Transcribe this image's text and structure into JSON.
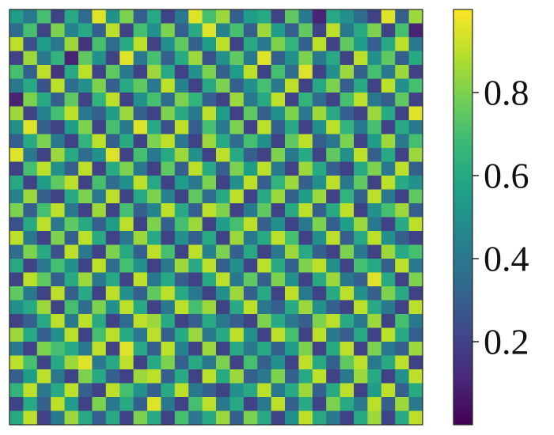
{
  "chart_data": {
    "type": "heatmap",
    "title": "",
    "xlabel": "",
    "ylabel": "",
    "rows": 30,
    "cols": 30,
    "value_range": [
      0,
      1
    ],
    "colormap": "viridis",
    "colormap_stops": [
      "#440154",
      "#482878",
      "#3e4989",
      "#31688e",
      "#26828e",
      "#1f9e89",
      "#35b779",
      "#6ece58",
      "#b5de2b",
      "#fde725"
    ],
    "colorbar": {
      "position": "right",
      "ticks": [
        {
          "value": 0.2,
          "label": "0.2"
        },
        {
          "value": 0.4,
          "label": "0.4"
        },
        {
          "value": 0.6,
          "label": "0.6"
        },
        {
          "value": 0.8,
          "label": "0.8"
        }
      ]
    },
    "grid": false,
    "values": [
      [
        0.55,
        0.4,
        0.7,
        0.2,
        0.6,
        0.35,
        0.95,
        0.5,
        0.8,
        0.3,
        0.6,
        0.2,
        0.4,
        0.95,
        0.7,
        0.85,
        0.3,
        0.55,
        0.6,
        0.2,
        0.75,
        0.4,
        0.1,
        0.6,
        0.5,
        0.35,
        0.2,
        0.95,
        0.3,
        0.85
      ],
      [
        0.35,
        0.7,
        0.2,
        0.8,
        0.45,
        0.6,
        0.3,
        0.9,
        0.2,
        0.7,
        0.5,
        0.8,
        0.3,
        0.6,
        0.95,
        0.45,
        0.7,
        0.3,
        0.85,
        0.55,
        0.3,
        0.75,
        0.2,
        0.9,
        0.4,
        0.6,
        0.8,
        0.2,
        0.7,
        0.1
      ],
      [
        0.9,
        0.25,
        0.55,
        0.4,
        0.85,
        0.15,
        0.7,
        0.35,
        0.6,
        0.9,
        0.2,
        0.5,
        0.75,
        0.3,
        0.55,
        0.9,
        0.2,
        0.6,
        0.4,
        0.8,
        0.65,
        0.3,
        0.9,
        0.2,
        0.75,
        0.55,
        0.3,
        0.6,
        0.9,
        0.4
      ],
      [
        0.2,
        0.85,
        0.4,
        0.65,
        0.1,
        0.75,
        0.5,
        0.2,
        0.95,
        0.4,
        0.7,
        0.3,
        0.6,
        0.85,
        0.25,
        0.5,
        0.75,
        0.4,
        0.95,
        0.3,
        0.5,
        0.8,
        0.4,
        0.6,
        0.2,
        0.9,
        0.5,
        0.75,
        0.3,
        0.6
      ],
      [
        0.7,
        0.3,
        0.9,
        0.15,
        0.6,
        0.9,
        0.2,
        0.75,
        0.4,
        0.2,
        0.85,
        0.6,
        0.2,
        0.5,
        0.8,
        0.3,
        0.55,
        0.9,
        0.2,
        0.7,
        0.35,
        0.95,
        0.2,
        0.5,
        0.85,
        0.3,
        0.7,
        0.4,
        0.85,
        0.2
      ],
      [
        0.4,
        0.6,
        0.25,
        0.9,
        0.35,
        0.5,
        0.8,
        0.3,
        0.6,
        0.75,
        0.4,
        0.9,
        0.45,
        0.2,
        0.6,
        0.8,
        0.3,
        0.5,
        0.7,
        0.4,
        0.9,
        0.2,
        0.6,
        0.8,
        0.3,
        0.6,
        0.2,
        0.9,
        0.5,
        0.7
      ],
      [
        0.1,
        0.8,
        0.6,
        0.3,
        0.75,
        0.2,
        0.65,
        0.9,
        0.2,
        0.5,
        0.7,
        0.35,
        0.8,
        0.65,
        0.3,
        0.2,
        0.85,
        0.4,
        0.6,
        0.9,
        0.2,
        0.65,
        0.35,
        0.2,
        0.7,
        0.9,
        0.4,
        0.3,
        0.75,
        0.2
      ],
      [
        0.85,
        0.2,
        0.45,
        0.7,
        0.9,
        0.4,
        0.3,
        0.55,
        0.85,
        0.3,
        0.2,
        0.8,
        0.6,
        0.4,
        0.9,
        0.55,
        0.2,
        0.75,
        0.3,
        0.5,
        0.8,
        0.4,
        0.85,
        0.6,
        0.3,
        0.2,
        0.85,
        0.6,
        0.2,
        0.95
      ],
      [
        0.5,
        0.95,
        0.3,
        0.2,
        0.55,
        0.8,
        0.2,
        0.7,
        0.4,
        0.95,
        0.6,
        0.25,
        0.9,
        0.3,
        0.7,
        0.4,
        0.8,
        0.2,
        0.9,
        0.3,
        0.6,
        0.2,
        0.5,
        0.9,
        0.65,
        0.4,
        0.7,
        0.2,
        0.6,
        0.4
      ],
      [
        0.3,
        0.6,
        0.8,
        0.4,
        0.2,
        0.65,
        0.9,
        0.3,
        0.6,
        0.2,
        0.8,
        0.9,
        0.4,
        0.2,
        0.85,
        0.6,
        0.35,
        0.7,
        0.5,
        0.2,
        0.75,
        0.9,
        0.3,
        0.4,
        0.8,
        0.2,
        0.55,
        0.85,
        0.4,
        0.7
      ],
      [
        0.95,
        0.4,
        0.2,
        0.85,
        0.6,
        0.35,
        0.5,
        0.95,
        0.2,
        0.7,
        0.4,
        0.6,
        0.85,
        0.5,
        0.2,
        0.9,
        0.6,
        0.3,
        0.2,
        0.8,
        0.4,
        0.6,
        0.2,
        0.75,
        0.5,
        0.9,
        0.3,
        0.6,
        0.2,
        0.85
      ],
      [
        0.2,
        0.7,
        0.9,
        0.5,
        0.3,
        0.9,
        0.2,
        0.6,
        0.8,
        0.4,
        0.2,
        0.75,
        0.3,
        0.9,
        0.6,
        0.3,
        0.8,
        0.55,
        0.9,
        0.4,
        0.2,
        0.85,
        0.6,
        0.3,
        0.2,
        0.6,
        0.8,
        0.4,
        0.9,
        0.3
      ],
      [
        0.6,
        0.2,
        0.55,
        0.75,
        0.9,
        0.2,
        0.7,
        0.35,
        0.5,
        0.9,
        0.6,
        0.2,
        0.55,
        0.4,
        0.8,
        0.2,
        0.5,
        0.9,
        0.3,
        0.65,
        0.85,
        0.3,
        0.5,
        0.9,
        0.4,
        0.75,
        0.2,
        0.9,
        0.6,
        0.5
      ],
      [
        0.45,
        0.85,
        0.3,
        0.2,
        0.6,
        0.8,
        0.4,
        0.9,
        0.2,
        0.6,
        0.8,
        0.45,
        0.2,
        0.75,
        0.35,
        0.6,
        0.9,
        0.2,
        0.6,
        0.85,
        0.3,
        0.55,
        0.85,
        0.2,
        0.65,
        0.3,
        0.9,
        0.4,
        0.2,
        0.75
      ],
      [
        0.8,
        0.3,
        0.7,
        0.9,
        0.4,
        0.2,
        0.85,
        0.2,
        0.7,
        0.3,
        0.45,
        0.9,
        0.6,
        0.3,
        0.9,
        0.8,
        0.2,
        0.4,
        0.75,
        0.2,
        0.6,
        0.9,
        0.3,
        0.6,
        0.9,
        0.2,
        0.5,
        0.7,
        0.85,
        0.3
      ],
      [
        0.25,
        0.6,
        0.9,
        0.4,
        0.75,
        0.6,
        0.3,
        0.55,
        0.9,
        0.2,
        0.8,
        0.3,
        0.7,
        0.85,
        0.2,
        0.55,
        0.7,
        0.9,
        0.3,
        0.5,
        0.2,
        0.4,
        0.8,
        0.3,
        0.55,
        0.85,
        0.4,
        0.2,
        0.6,
        0.9
      ],
      [
        0.9,
        0.4,
        0.2,
        0.8,
        0.3,
        0.9,
        0.6,
        0.2,
        0.4,
        0.85,
        0.6,
        0.2,
        0.5,
        0.3,
        0.6,
        0.2,
        0.85,
        0.4,
        0.6,
        0.9,
        0.7,
        0.2,
        0.5,
        0.9,
        0.3,
        0.6,
        0.9,
        0.5,
        0.3,
        0.2
      ],
      [
        0.35,
        0.8,
        0.6,
        0.25,
        0.9,
        0.4,
        0.2,
        0.8,
        0.6,
        0.3,
        0.9,
        0.7,
        0.2,
        0.9,
        0.45,
        0.8,
        0.3,
        0.6,
        0.2,
        0.4,
        0.85,
        0.6,
        0.3,
        0.2,
        0.8,
        0.4,
        0.2,
        0.85,
        0.6,
        0.7
      ],
      [
        0.6,
        0.2,
        0.4,
        0.7,
        0.5,
        0.2,
        0.9,
        0.35,
        0.7,
        0.5,
        0.2,
        0.4,
        0.85,
        0.6,
        0.9,
        0.3,
        0.5,
        0.2,
        0.9,
        0.6,
        0.3,
        0.8,
        0.9,
        0.5,
        0.2,
        0.7,
        0.6,
        0.3,
        0.9,
        0.4
      ],
      [
        0.2,
        0.9,
        0.75,
        0.3,
        0.6,
        0.85,
        0.4,
        0.6,
        0.2,
        0.9,
        0.4,
        0.6,
        0.3,
        0.2,
        0.6,
        0.9,
        0.4,
        0.75,
        0.3,
        0.8,
        0.5,
        0.2,
        0.6,
        0.85,
        0.4,
        0.3,
        0.95,
        0.6,
        0.2,
        0.8
      ],
      [
        0.75,
        0.4,
        0.2,
        0.9,
        0.3,
        0.6,
        0.2,
        0.9,
        0.5,
        0.3,
        0.75,
        0.9,
        0.6,
        0.4,
        0.2,
        0.5,
        0.85,
        0.3,
        0.6,
        0.2,
        0.9,
        0.4,
        0.2,
        0.6,
        0.9,
        0.5,
        0.3,
        0.8,
        0.6,
        0.2
      ],
      [
        0.5,
        0.6,
        0.85,
        0.2,
        0.7,
        0.35,
        0.8,
        0.5,
        0.9,
        0.6,
        0.2,
        0.4,
        0.9,
        0.7,
        0.85,
        0.2,
        0.6,
        0.9,
        0.4,
        0.3,
        0.6,
        0.85,
        0.5,
        0.3,
        0.2,
        0.9,
        0.6,
        0.4,
        0.2,
        0.9
      ],
      [
        0.2,
        0.3,
        0.6,
        0.9,
        0.4,
        0.9,
        0.6,
        0.2,
        0.35,
        0.9,
        0.85,
        0.6,
        0.2,
        0.3,
        0.6,
        0.4,
        0.3,
        0.2,
        0.8,
        0.6,
        0.4,
        0.3,
        0.8,
        0.9,
        0.6,
        0.4,
        0.85,
        0.2,
        0.7,
        0.4
      ],
      [
        0.85,
        0.6,
        0.3,
        0.5,
        0.9,
        0.2,
        0.7,
        0.9,
        0.6,
        0.4,
        0.9,
        0.3,
        0.6,
        0.85,
        0.4,
        0.6,
        0.9,
        0.5,
        0.2,
        0.9,
        0.7,
        0.2,
        0.9,
        0.4,
        0.3,
        0.6,
        0.2,
        0.9,
        0.6,
        0.3
      ],
      [
        0.4,
        0.2,
        0.8,
        0.7,
        0.6,
        0.4,
        0.9,
        0.2,
        0.95,
        0.6,
        0.3,
        0.9,
        0.45,
        0.2,
        0.85,
        0.2,
        0.6,
        0.4,
        0.6,
        0.3,
        0.55,
        0.8,
        0.2,
        0.6,
        0.9,
        0.2,
        0.8,
        0.4,
        0.3,
        0.85
      ],
      [
        0.9,
        0.7,
        0.2,
        0.6,
        0.85,
        0.95,
        0.4,
        0.6,
        0.9,
        0.2,
        0.6,
        0.8,
        0.3,
        0.6,
        0.4,
        0.8,
        0.2,
        0.7,
        0.3,
        0.5,
        0.2,
        0.9,
        0.6,
        0.3,
        0.75,
        0.9,
        0.4,
        0.6,
        0.9,
        0.2
      ],
      [
        0.3,
        0.55,
        0.9,
        0.4,
        0.2,
        0.8,
        0.6,
        0.3,
        0.2,
        0.85,
        0.9,
        0.3,
        0.6,
        0.2,
        0.9,
        0.6,
        0.85,
        0.3,
        0.4,
        0.8,
        0.3,
        0.6,
        0.9,
        0.2,
        0.4,
        0.85,
        0.6,
        0.2,
        0.5,
        0.9
      ],
      [
        0.65,
        0.9,
        0.4,
        0.6,
        0.9,
        0.3,
        0.2,
        0.9,
        0.7,
        0.5,
        0.3,
        0.6,
        0.9,
        0.4,
        0.3,
        0.2,
        0.5,
        0.6,
        0.9,
        0.4,
        0.6,
        0.85,
        0.3,
        0.6,
        0.9,
        0.2,
        0.55,
        0.9,
        0.3,
        0.6
      ],
      [
        0.2,
        0.6,
        0.3,
        0.9,
        0.55,
        0.2,
        0.8,
        0.4,
        0.6,
        0.3,
        0.95,
        0.4,
        0.2,
        0.7,
        0.9,
        0.4,
        0.6,
        0.2,
        0.4,
        0.9,
        0.3,
        0.6,
        0.2,
        0.8,
        0.6,
        0.4,
        0.9,
        0.3,
        0.85,
        0.4
      ],
      [
        0.6,
        0.9,
        0.2,
        0.4,
        0.85,
        0.6,
        0.3,
        0.6,
        0.2,
        0.8,
        0.6,
        0.2,
        0.7,
        0.4,
        0.6,
        0.85,
        0.3,
        0.8,
        0.6,
        0.2,
        0.5,
        0.9,
        0.6,
        0.4,
        0.2,
        0.6,
        0.85,
        0.2,
        0.6,
        0.9
      ]
    ]
  }
}
